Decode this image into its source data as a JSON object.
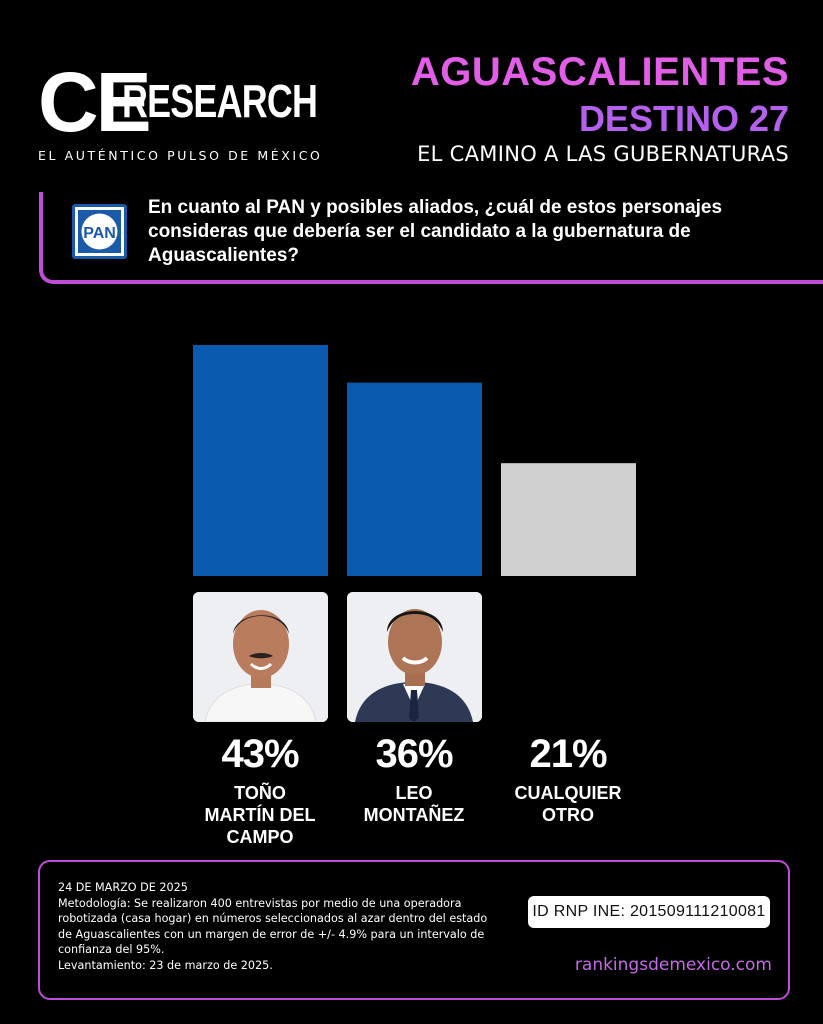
{
  "brand": {
    "logo_text": "CERESEARCH",
    "tagline": "EL AUTÉNTICO PULSO DE MÉXICO"
  },
  "header": {
    "title": "AGUASCALIENTES",
    "subtitle": "DESTINO 27",
    "caption": "EL CAMINO A LAS GUBERNATURAS"
  },
  "question": {
    "party_logo_text": "PAN",
    "text": "En cuanto al PAN y posibles aliados, ¿cuál de estos personajes consideras que debería ser el candidato a la gubernatura de Aguascalientes?"
  },
  "chart_data": {
    "type": "bar",
    "categories": [
      "TOÑO MARTÍN DEL CAMPO",
      "LEO MONTAÑEZ",
      "CUALQUIER OTRO"
    ],
    "values": [
      43,
      36,
      21
    ],
    "value_labels": [
      "43%",
      "36%",
      "21%"
    ],
    "colors": [
      "#0a5bb0",
      "#0a5bb0",
      "#d0d0d0"
    ],
    "ylim": [
      0,
      43
    ],
    "grid": false
  },
  "candidates": [
    {
      "name_lines": "TOÑO\nMARTÍN DEL\nCAMPO",
      "pct": "43%"
    },
    {
      "name_lines": "LEO\nMONTAÑEZ",
      "pct": "36%"
    },
    {
      "name_lines": "CUALQUIER\nOTRO",
      "pct": "21%"
    }
  ],
  "footer": {
    "date": "24 DE MARZO DE 2025",
    "methodology": "Metodología: Se realizaron 400 entrevistas por medio de una operadora robotizada (casa hogar) en números seleccionados al azar dentro del estado de Aguascalientes con un margen de error de +/- 4.9% para un intervalo de confianza del 95%.",
    "fieldwork": "Levantamiento: 23 de marzo de 2025.",
    "rnp_id": "ID RNP INE: 201509111210081",
    "website": "rankingsdemexico.com"
  }
}
